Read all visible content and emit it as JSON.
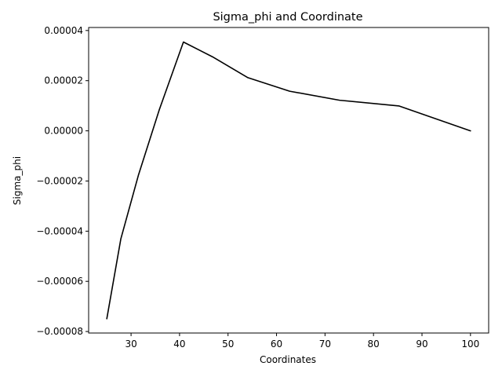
{
  "chart_data": {
    "type": "line",
    "title": "Sigma_phi and Coordinate",
    "xlabel": "Coordinates",
    "ylabel": "Sigma_phi",
    "xlim": [
      21.25,
      103.75
    ],
    "ylim": [
      -8.06e-05,
      4.12e-05
    ],
    "x_ticks": [
      30,
      40,
      50,
      60,
      70,
      80,
      90,
      100
    ],
    "x_tick_labels": [
      "30",
      "40",
      "50",
      "60",
      "70",
      "80",
      "90",
      "100"
    ],
    "y_ticks": [
      -8e-05,
      -6e-05,
      -4e-05,
      -2e-05,
      0.0,
      2e-05,
      4e-05
    ],
    "y_tick_labels": [
      "−0.00008",
      "−0.00006",
      "−0.00004",
      "−0.00002",
      "0.00000",
      "0.00002",
      "0.00004"
    ],
    "grid": false,
    "legend": "none",
    "series": [
      {
        "color": "#000000",
        "x": [
          25.0,
          27.9,
          31.5,
          35.8,
          40.8,
          46.8,
          54.1,
          62.7,
          73.0,
          85.3,
          100.0
        ],
        "y": [
          -7.49e-05,
          -4.3e-05,
          -1.78e-05,
          8.3e-06,
          3.54e-05,
          2.95e-05,
          2.12e-05,
          1.58e-05,
          1.22e-05,
          9.9e-06,
          0.0
        ]
      }
    ]
  }
}
